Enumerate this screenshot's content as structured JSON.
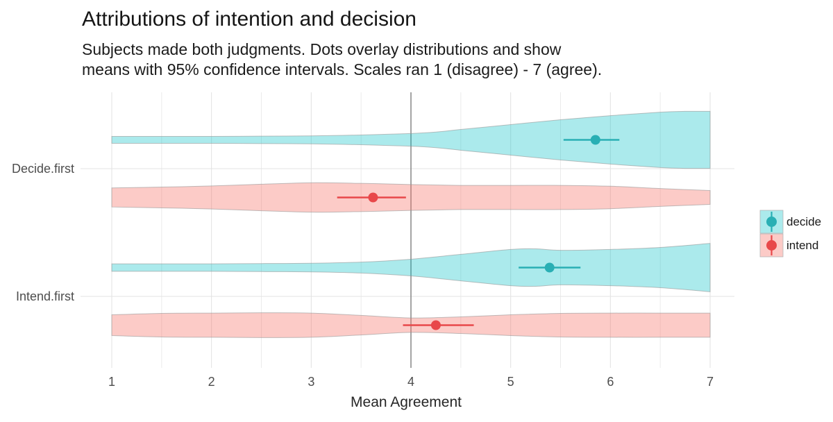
{
  "chart_data": {
    "type": "violin",
    "title": "Attributions of intention and decision",
    "subtitle_line1": "Subjects made both judgments. Dots overlay distributions and show",
    "subtitle_line2": "means with 95% confidence intervals. Scales ran 1 (disagree) - 7 (agree).",
    "xlabel": "Mean Agreement",
    "x_ticks": [
      1,
      2,
      3,
      4,
      5,
      6,
      7
    ],
    "x_axis_range": [
      1,
      7
    ],
    "x_minor_gridline_step": 0.5,
    "reference_line_x": 4,
    "grid": "on",
    "legend_position": "right",
    "categories": [
      "Decide.first",
      "Intend.first"
    ],
    "series": [
      {
        "name": "decide",
        "fill": "#00BFC4",
        "fill_opacity": 0.33,
        "color": "#29AFB4"
      },
      {
        "name": "intend",
        "fill": "#F8766D",
        "fill_opacity": 0.38,
        "color": "#E8484A"
      }
    ],
    "violins": [
      {
        "category": "Decide.first",
        "series": "decide",
        "mean": 5.85,
        "ci_low": 5.53,
        "ci_high": 6.09,
        "density": [
          [
            1,
            0.12
          ],
          [
            1.5,
            0.12
          ],
          [
            2,
            0.12
          ],
          [
            2.5,
            0.13
          ],
          [
            3,
            0.14
          ],
          [
            3.5,
            0.17
          ],
          [
            4,
            0.22
          ],
          [
            4.25,
            0.27
          ],
          [
            4.5,
            0.36
          ],
          [
            5,
            0.53
          ],
          [
            5.5,
            0.7
          ],
          [
            6,
            0.84
          ],
          [
            6.5,
            0.96
          ],
          [
            6.75,
            0.99
          ],
          [
            7,
            0.99
          ]
        ]
      },
      {
        "category": "Decide.first",
        "series": "intend",
        "mean": 3.62,
        "ci_low": 3.26,
        "ci_high": 3.95,
        "density": [
          [
            1,
            0.33
          ],
          [
            1.5,
            0.36
          ],
          [
            2,
            0.4
          ],
          [
            2.5,
            0.46
          ],
          [
            3,
            0.51
          ],
          [
            3.5,
            0.49
          ],
          [
            4,
            0.45
          ],
          [
            4.5,
            0.42
          ],
          [
            5,
            0.42
          ],
          [
            5.5,
            0.42
          ],
          [
            6,
            0.39
          ],
          [
            6.5,
            0.31
          ],
          [
            7,
            0.24
          ]
        ]
      },
      {
        "category": "Intend.first",
        "series": "decide",
        "mean": 5.39,
        "ci_low": 5.08,
        "ci_high": 5.7,
        "density": [
          [
            1,
            0.13
          ],
          [
            1.5,
            0.13
          ],
          [
            2,
            0.13
          ],
          [
            2.5,
            0.14
          ],
          [
            3,
            0.15
          ],
          [
            3.5,
            0.19
          ],
          [
            4,
            0.29
          ],
          [
            4.5,
            0.46
          ],
          [
            5,
            0.63
          ],
          [
            5.25,
            0.65
          ],
          [
            5.5,
            0.6
          ],
          [
            6,
            0.63
          ],
          [
            6.5,
            0.7
          ],
          [
            7,
            0.84
          ]
        ]
      },
      {
        "category": "Intend.first",
        "series": "intend",
        "mean": 4.25,
        "ci_low": 3.92,
        "ci_high": 4.63,
        "density": [
          [
            1,
            0.36
          ],
          [
            1.5,
            0.41
          ],
          [
            2,
            0.42
          ],
          [
            2.5,
            0.43
          ],
          [
            3,
            0.42
          ],
          [
            3.5,
            0.34
          ],
          [
            4,
            0.25
          ],
          [
            4.5,
            0.29
          ],
          [
            5,
            0.36
          ],
          [
            5.5,
            0.41
          ],
          [
            6,
            0.42
          ],
          [
            6.5,
            0.42
          ],
          [
            7,
            0.42
          ]
        ]
      }
    ]
  }
}
